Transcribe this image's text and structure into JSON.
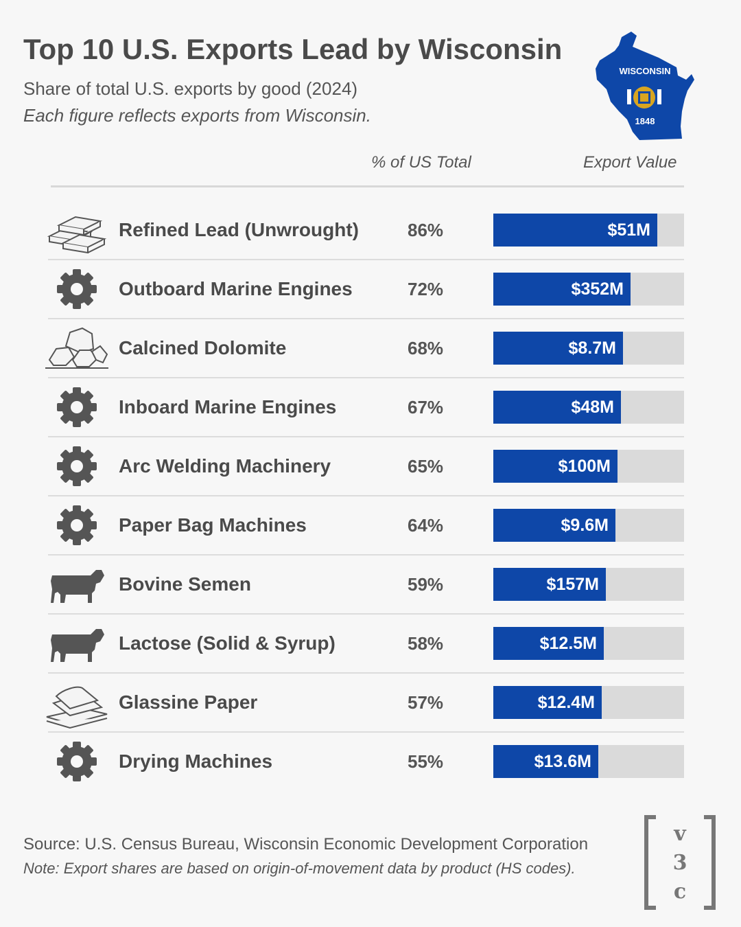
{
  "header": {
    "title": "Top 10 U.S. Exports Lead by Wisconsin",
    "subtitle": "Share of total U.S. exports by good (2024)",
    "note": "Each figure reflects exports from Wisconsin."
  },
  "map": {
    "name": "WISCONSIN",
    "year": "1848",
    "color": "#0e47a8"
  },
  "columns": {
    "pct": "% of US Total",
    "value": "Export Value"
  },
  "colors": {
    "bar": "#0e47a8",
    "track": "#dadada",
    "text": "#4a4a4a"
  },
  "chart_data": {
    "type": "bar",
    "categories": [
      "Refined Lead (Unwrought)",
      "Outboard Marine Engines",
      "Calcined Dolomite",
      "Inboard Marine Engines",
      "Arc Welding Machinery",
      "Paper Bag Machines",
      "Bovine Semen",
      "Lactose (Solid & Syrup)",
      "Glassine Paper",
      "Drying Machines"
    ],
    "values": [
      86,
      72,
      68,
      67,
      65,
      64,
      59,
      58,
      57,
      55
    ],
    "value_labels": [
      "86%",
      "72%",
      "68%",
      "67%",
      "65%",
      "64%",
      "59%",
      "58%",
      "57%",
      "55%"
    ],
    "export_values": [
      "$51M",
      "$352M",
      "$8.7M",
      "$48M",
      "$100M",
      "$9.6M",
      "$157M",
      "$12.5M",
      "$12.4M",
      "$13.6M"
    ],
    "icons": [
      "ingots-icon",
      "gear-icon",
      "rocks-icon",
      "gear-icon",
      "gear-icon",
      "gear-icon",
      "cow-icon",
      "cow-icon",
      "paper-stack-icon",
      "gear-icon"
    ],
    "ylim": [
      0,
      100
    ]
  },
  "footer": {
    "source": "Source: U.S. Census Bureau, Wisconsin Economic Development Corporation",
    "note": "Note: Export shares are based on origin-of-movement data by product (HS codes).",
    "logo": [
      "v",
      "3",
      "c"
    ]
  }
}
